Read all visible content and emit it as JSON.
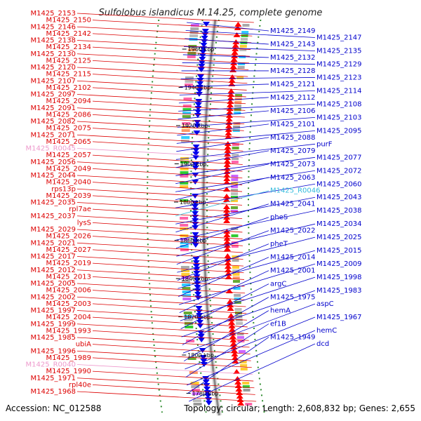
{
  "header": {
    "title": "Sulfolobus islandicus M.14.25, complete genome"
  },
  "footer": {
    "accession": "Accession: NC_012588",
    "summary": "Topology: circular; Length: 2,608,832 bp; Genes: 2,655"
  },
  "colors": {
    "reverse_strand_label": "#dd0000",
    "forward_strand_label": "#0000cc",
    "rna_forward_label": "#33bbdd",
    "rna_reverse_label": "#ee99cc",
    "reverse_arrow": "#ff0000",
    "forward_arrow": "#0000ee",
    "backbone": "#888888",
    "frame_dots": "#2e8b2e"
  },
  "ticks": [
    {
      "label": "1960 kbp"
    },
    {
      "label": "1940 kbp"
    },
    {
      "label": "1920 kbp"
    },
    {
      "label": "1900 kbp"
    },
    {
      "label": "1880 kbp"
    },
    {
      "label": "1860 kbp"
    },
    {
      "label": "1840 kbp"
    },
    {
      "label": "1820 kbp"
    },
    {
      "label": "1800 kbp"
    },
    {
      "label": "1780 kbp"
    }
  ],
  "left_labels": [
    {
      "text": "M1425_2153"
    },
    {
      "text": "M1425_2150"
    },
    {
      "text": "M1425_2146"
    },
    {
      "text": "M1425_2142"
    },
    {
      "text": "M1425_2138"
    },
    {
      "text": "M1425_2134"
    },
    {
      "text": "M1425_2130"
    },
    {
      "text": "M1425_2125"
    },
    {
      "text": "M1425_2120"
    },
    {
      "text": "M1425_2115"
    },
    {
      "text": "M1425_2107"
    },
    {
      "text": "M1425_2102"
    },
    {
      "text": "M1425_2097"
    },
    {
      "text": "M1425_2094"
    },
    {
      "text": "M1425_2091"
    },
    {
      "text": "M1425_2086"
    },
    {
      "text": "M1425_2082"
    },
    {
      "text": "M1425_2075"
    },
    {
      "text": "M1425_2071"
    },
    {
      "text": "M1425_2065"
    },
    {
      "text": "M1425_R0045",
      "rna": true
    },
    {
      "text": "M1425_2057"
    },
    {
      "text": "M1425_2056"
    },
    {
      "text": "M1425_2049"
    },
    {
      "text": "M1425_2044"
    },
    {
      "text": "M1425_2040"
    },
    {
      "text": "rps13p"
    },
    {
      "text": "M1425_2039"
    },
    {
      "text": "M1425_2035"
    },
    {
      "text": "rpl7ae"
    },
    {
      "text": "M1425_2037"
    },
    {
      "text": "lysS"
    },
    {
      "text": "M1425_2029"
    },
    {
      "text": "M1425_2026"
    },
    {
      "text": "M1425_2021"
    },
    {
      "text": "M1425_2027"
    },
    {
      "text": "M1425_2017"
    },
    {
      "text": "M1425_2019"
    },
    {
      "text": "M1425_2012"
    },
    {
      "text": "M1425_2013"
    },
    {
      "text": "M1425_2005"
    },
    {
      "text": "M1425_2006"
    },
    {
      "text": "M1425_2002"
    },
    {
      "text": "M1425_2003"
    },
    {
      "text": "M1425_1997"
    },
    {
      "text": "M1425_2004"
    },
    {
      "text": "M1425_1999"
    },
    {
      "text": "M1425_1993"
    },
    {
      "text": "M1425_1985"
    },
    {
      "text": "ubiA"
    },
    {
      "text": "M1425_1996"
    },
    {
      "text": "M1425_1989"
    },
    {
      "text": "M1425_R0040",
      "rna": true
    },
    {
      "text": "M1425_1990"
    },
    {
      "text": "M1425_1971"
    },
    {
      "text": "rpl40e"
    },
    {
      "text": "M1425_1968"
    }
  ],
  "right_labels": [
    {
      "text": "M1425_2149"
    },
    {
      "text": "M1425_2147"
    },
    {
      "text": "M1425_2143"
    },
    {
      "text": "M1425_2135"
    },
    {
      "text": "M1425_2132"
    },
    {
      "text": "M1425_2129"
    },
    {
      "text": "M1425_2128"
    },
    {
      "text": "M1425_2123"
    },
    {
      "text": "M1425_2121"
    },
    {
      "text": "M1425_2114"
    },
    {
      "text": "M1425_2112"
    },
    {
      "text": "M1425_2108"
    },
    {
      "text": "M1425_2106"
    },
    {
      "text": "M1425_2103"
    },
    {
      "text": "M1425_2101"
    },
    {
      "text": "M1425_2095"
    },
    {
      "text": "M1425_2088"
    },
    {
      "text": "purF"
    },
    {
      "text": "M1425_2079"
    },
    {
      "text": "M1425_2077"
    },
    {
      "text": "M1425_2073"
    },
    {
      "text": "M1425_2072"
    },
    {
      "text": "M1425_2063"
    },
    {
      "text": "M1425_2060"
    },
    {
      "text": "M1425_R0046",
      "rna": true
    },
    {
      "text": "M1425_2043"
    },
    {
      "text": "M1425_2041"
    },
    {
      "text": "M1425_2038"
    },
    {
      "text": "pheS"
    },
    {
      "text": "M1425_2034"
    },
    {
      "text": "M1425_2022"
    },
    {
      "text": "M1425_2025"
    },
    {
      "text": "pheT"
    },
    {
      "text": "M1425_2015"
    },
    {
      "text": "M1425_2014"
    },
    {
      "text": "M1425_2009"
    },
    {
      "text": "M1425_2001"
    },
    {
      "text": "M1425_1998"
    },
    {
      "text": "argC"
    },
    {
      "text": "M1425_1983"
    },
    {
      "text": "M1425_1975"
    },
    {
      "text": "aspC"
    },
    {
      "text": "hemA"
    },
    {
      "text": "M1425_1967"
    },
    {
      "text": "ef1B"
    },
    {
      "text": "hemC"
    },
    {
      "text": "M1425_1949"
    },
    {
      "text": "dcd"
    }
  ]
}
